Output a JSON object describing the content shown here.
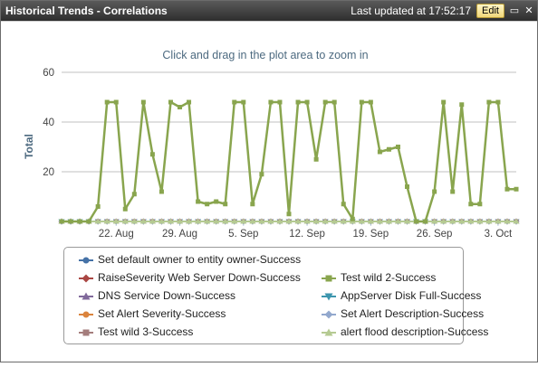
{
  "window": {
    "title": "Historical Trends - Correlations",
    "last_updated": "Last updated at 17:52:17",
    "edit_label": "Edit",
    "minimize_glyph": "▭",
    "close_glyph": "✕"
  },
  "chart_data": {
    "type": "line",
    "subtitle": "Click and drag in the plot area to zoom in",
    "ylabel": "Total",
    "xlabel": "",
    "ylim": [
      0,
      60
    ],
    "yticks": [
      20,
      40,
      60
    ],
    "grid": true,
    "x_start": "2013-08-16",
    "x_end": "2013-10-05",
    "xticks": [
      {
        "date": "2013-08-22",
        "label": "22. Aug"
      },
      {
        "date": "2013-08-29",
        "label": "29. Aug"
      },
      {
        "date": "2013-09-05",
        "label": "5. Sep"
      },
      {
        "date": "2013-09-12",
        "label": "12. Sep"
      },
      {
        "date": "2013-09-19",
        "label": "19. Sep"
      },
      {
        "date": "2013-09-26",
        "label": "26. Sep"
      },
      {
        "date": "2013-10-03",
        "label": "3. Oct"
      }
    ],
    "dates": [
      "2013-08-16",
      "2013-08-17",
      "2013-08-18",
      "2013-08-19",
      "2013-08-20",
      "2013-08-21",
      "2013-08-22",
      "2013-08-23",
      "2013-08-24",
      "2013-08-25",
      "2013-08-26",
      "2013-08-27",
      "2013-08-28",
      "2013-08-29",
      "2013-08-30",
      "2013-08-31",
      "2013-09-01",
      "2013-09-02",
      "2013-09-03",
      "2013-09-04",
      "2013-09-05",
      "2013-09-06",
      "2013-09-07",
      "2013-09-08",
      "2013-09-09",
      "2013-09-10",
      "2013-09-11",
      "2013-09-12",
      "2013-09-13",
      "2013-09-14",
      "2013-09-15",
      "2013-09-16",
      "2013-09-17",
      "2013-09-18",
      "2013-09-19",
      "2013-09-20",
      "2013-09-21",
      "2013-09-22",
      "2013-09-23",
      "2013-09-24",
      "2013-09-25",
      "2013-09-26",
      "2013-09-27",
      "2013-09-28",
      "2013-09-29",
      "2013-09-30",
      "2013-10-01",
      "2013-10-02",
      "2013-10-03",
      "2013-10-04",
      "2013-10-05"
    ],
    "series": [
      {
        "name": "Set default owner to entity owner-Success",
        "color": "#4572a7",
        "marker": "circle",
        "values": [
          0,
          0,
          0,
          0,
          0,
          0,
          0,
          0,
          0,
          0,
          0,
          0,
          0,
          0,
          0,
          0,
          0,
          0,
          0,
          0,
          0,
          0,
          0,
          0,
          0,
          0,
          0,
          0,
          0,
          0,
          0,
          0,
          0,
          0,
          0,
          0,
          0,
          0,
          0,
          0,
          0,
          0,
          0,
          0,
          0,
          0,
          0,
          0,
          0,
          0,
          0
        ]
      },
      {
        "name": "RaiseSeverity Web Server Down-Success",
        "color": "#aa4643",
        "marker": "diamond",
        "values": [
          0,
          0,
          0,
          0,
          0,
          0,
          0,
          0,
          0,
          0,
          0,
          0,
          0,
          0,
          0,
          0,
          0,
          0,
          0,
          0,
          0,
          0,
          0,
          0,
          0,
          0,
          0,
          0,
          0,
          0,
          0,
          0,
          0,
          0,
          0,
          0,
          0,
          0,
          0,
          0,
          0,
          0,
          0,
          0,
          0,
          0,
          0,
          0,
          0,
          0,
          0
        ]
      },
      {
        "name": "Test wild 2-Success",
        "color": "#89a54e",
        "marker": "square",
        "values": [
          0,
          0,
          0,
          0,
          6,
          48,
          48,
          5,
          11,
          48,
          27,
          12,
          48,
          46,
          48,
          8,
          7,
          8,
          7,
          48,
          48,
          7,
          19,
          48,
          48,
          3,
          48,
          48,
          25,
          48,
          48,
          7,
          1,
          48,
          48,
          28,
          29,
          30,
          14,
          0,
          0,
          12,
          48,
          12,
          47,
          7,
          7,
          48,
          48,
          13,
          13
        ]
      },
      {
        "name": "DNS Service Down-Success",
        "color": "#80699b",
        "marker": "triangle",
        "values": [
          0,
          0,
          0,
          0,
          0,
          0,
          0,
          0,
          0,
          0,
          0,
          0,
          0,
          0,
          0,
          0,
          0,
          0,
          0,
          0,
          0,
          0,
          0,
          0,
          0,
          0,
          0,
          0,
          0,
          0,
          0,
          0,
          0,
          0,
          0,
          0,
          0,
          0,
          0,
          0,
          0,
          0,
          0,
          0,
          0,
          0,
          0,
          0,
          0,
          0,
          0
        ]
      },
      {
        "name": "AppServer Disk Full-Success",
        "color": "#3d96ae",
        "marker": "triangle-down",
        "values": [
          0,
          0,
          0,
          0,
          0,
          0,
          0,
          0,
          0,
          0,
          0,
          0,
          0,
          0,
          0,
          0,
          0,
          0,
          0,
          0,
          0,
          0,
          0,
          0,
          0,
          0,
          0,
          0,
          0,
          0,
          0,
          0,
          0,
          0,
          0,
          0,
          0,
          0,
          0,
          0,
          0,
          0,
          0,
          0,
          0,
          0,
          0,
          0,
          0,
          0,
          0
        ]
      },
      {
        "name": "Set Alert Severity-Success",
        "color": "#db843d",
        "marker": "circle",
        "values": [
          0,
          0,
          0,
          0,
          0,
          0,
          0,
          0,
          0,
          0,
          0,
          0,
          0,
          0,
          0,
          0,
          0,
          0,
          0,
          0,
          0,
          0,
          0,
          0,
          0,
          0,
          0,
          0,
          0,
          0,
          0,
          0,
          0,
          0,
          0,
          0,
          0,
          0,
          0,
          0,
          0,
          0,
          0,
          0,
          0,
          0,
          0,
          0,
          0,
          0,
          0
        ]
      },
      {
        "name": "Set Alert Description-Success",
        "color": "#92a8cd",
        "marker": "diamond",
        "values": [
          0,
          0,
          0,
          0,
          0,
          0,
          0,
          0,
          0,
          0,
          0,
          0,
          0,
          0,
          0,
          0,
          0,
          0,
          0,
          0,
          0,
          0,
          0,
          0,
          0,
          0,
          0,
          0,
          0,
          0,
          0,
          0,
          0,
          0,
          0,
          0,
          0,
          0,
          0,
          0,
          0,
          0,
          0,
          0,
          0,
          0,
          0,
          0,
          0,
          0,
          0
        ]
      },
      {
        "name": "Test wild 3-Success",
        "color": "#a47d7c",
        "marker": "square",
        "values": [
          0,
          0,
          0,
          0,
          0,
          0,
          0,
          0,
          0,
          0,
          0,
          0,
          0,
          0,
          0,
          0,
          0,
          0,
          0,
          0,
          0,
          0,
          0,
          0,
          0,
          0,
          0,
          0,
          0,
          0,
          0,
          0,
          0,
          0,
          0,
          0,
          0,
          0,
          0,
          0,
          0,
          0,
          0,
          0,
          0,
          0,
          0,
          0,
          0,
          0,
          0
        ]
      },
      {
        "name": "alert flood description-Success",
        "color": "#b5ca92",
        "marker": "triangle",
        "values": [
          0,
          0,
          0,
          0,
          0,
          0,
          0,
          0,
          0,
          0,
          0,
          0,
          0,
          0,
          0,
          0,
          0,
          0,
          0,
          0,
          0,
          0,
          0,
          0,
          0,
          0,
          0,
          0,
          0,
          0,
          0,
          0,
          0,
          0,
          0,
          0,
          0,
          0,
          0,
          0,
          0,
          0,
          0,
          0,
          0,
          0,
          0,
          0,
          0,
          0,
          0
        ]
      }
    ],
    "legend": {
      "placement": "bottom",
      "rows": [
        [
          0
        ],
        [
          1,
          2
        ],
        [
          3,
          4
        ],
        [
          5,
          6
        ],
        [
          7,
          8
        ]
      ]
    }
  }
}
